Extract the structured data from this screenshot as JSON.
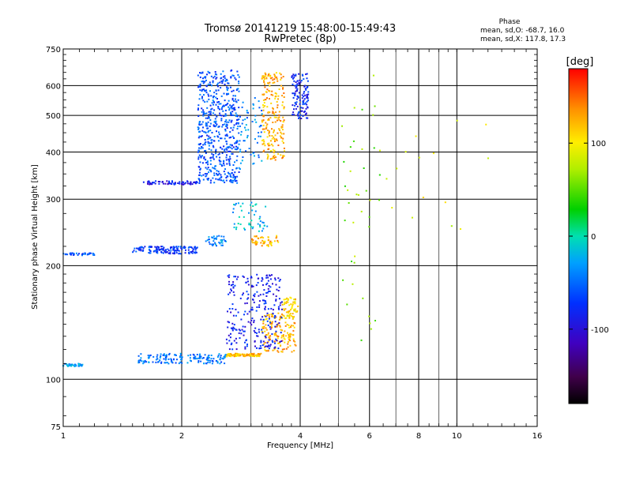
{
  "chart_data": {
    "type": "scatter",
    "title_line1": "Tromsø 20141219 15:48:00-15:49:43",
    "title_line2": "RwPretec (8p)",
    "xlabel": "Frequency [MHz]",
    "ylabel": "Stationary phase Virtual Height [km]",
    "x_scale": "log",
    "y_scale": "log",
    "xlim": [
      1,
      16
    ],
    "ylim": [
      75,
      750
    ],
    "x_ticks": [
      1,
      2,
      4,
      6,
      8,
      10,
      16
    ],
    "x_tick_labels": [
      "1",
      "2",
      "4",
      "6",
      "8",
      "10",
      "16"
    ],
    "x_minor_lines": [
      3,
      5,
      7,
      9
    ],
    "y_ticks": [
      75,
      100,
      200,
      300,
      400,
      500,
      600,
      750
    ],
    "y_tick_labels": [
      "75",
      "100",
      "200",
      "300",
      "400",
      "500",
      "600",
      "750"
    ],
    "grid": true,
    "phase_stats": {
      "title": "Phase",
      "line_o": "mean, sd,O: -68.7, 16.0",
      "line_x": "mean, sd,X: 117.8, 17.3"
    },
    "colorbar": {
      "label": "[deg]",
      "range": [
        -180,
        180
      ],
      "ticks": [
        100,
        0,
        -100
      ],
      "tick_labels": [
        "100",
        "0",
        "-100"
      ],
      "colormap": "rainbow (black-purple-blue-cyan-green-yellow-red)"
    },
    "series": [
      {
        "x_range": [
          1.0,
          1.12
        ],
        "y_range": [
          108,
          110
        ],
        "phase": -30,
        "count": 40
      },
      {
        "x_range": [
          1.55,
          2.6
        ],
        "y_range": [
          110,
          117
        ],
        "phase": -45,
        "count": 160
      },
      {
        "x_range": [
          2.6,
          3.2
        ],
        "y_range": [
          115,
          117
        ],
        "phase": 120,
        "count": 110
      },
      {
        "x_range": [
          3.2,
          3.9
        ],
        "y_range": [
          118,
          150
        ],
        "phase": 125,
        "count": 150
      },
      {
        "x_range": [
          3.6,
          3.95
        ],
        "y_range": [
          145,
          165
        ],
        "phase": 110,
        "count": 60
      },
      {
        "x_range": [
          2.6,
          3.6
        ],
        "y_range": [
          120,
          190
        ],
        "phase": -85,
        "count": 260
      },
      {
        "x_range": [
          1.0,
          1.2
        ],
        "y_range": [
          213,
          216
        ],
        "phase": -60,
        "count": 40
      },
      {
        "x_range": [
          1.5,
          2.2
        ],
        "y_range": [
          215,
          225
        ],
        "phase": -70,
        "count": 140
      },
      {
        "x_range": [
          2.3,
          2.6
        ],
        "y_range": [
          225,
          240
        ],
        "phase": -40,
        "count": 40
      },
      {
        "x_range": [
          2.7,
          3.3
        ],
        "y_range": [
          245,
          295
        ],
        "phase": -20,
        "count": 50
      },
      {
        "x_range": [
          3.0,
          3.55
        ],
        "y_range": [
          225,
          240
        ],
        "phase": 120,
        "count": 50
      },
      {
        "x_range": [
          1.6,
          2.2
        ],
        "y_range": [
          328,
          335
        ],
        "phase": -90,
        "count": 70
      },
      {
        "x_range": [
          2.2,
          2.8
        ],
        "y_range": [
          330,
          660
        ],
        "phase": -60,
        "count": 560
      },
      {
        "x_range": [
          2.8,
          3.2
        ],
        "y_range": [
          360,
          560
        ],
        "phase": -40,
        "count": 60
      },
      {
        "x_range": [
          3.2,
          3.65
        ],
        "y_range": [
          380,
          650
        ],
        "phase": 125,
        "count": 220
      },
      {
        "x_range": [
          3.8,
          4.2
        ],
        "y_range": [
          490,
          650
        ],
        "phase": -80,
        "count": 120
      },
      {
        "x_range": [
          5.0,
          6.4
        ],
        "y_range": [
          120,
          650
        ],
        "phase": 60,
        "count": 40
      },
      {
        "x_range": [
          6.5,
          12.5
        ],
        "y_range": [
          250,
          660
        ],
        "phase": 90,
        "count": 15
      }
    ]
  }
}
